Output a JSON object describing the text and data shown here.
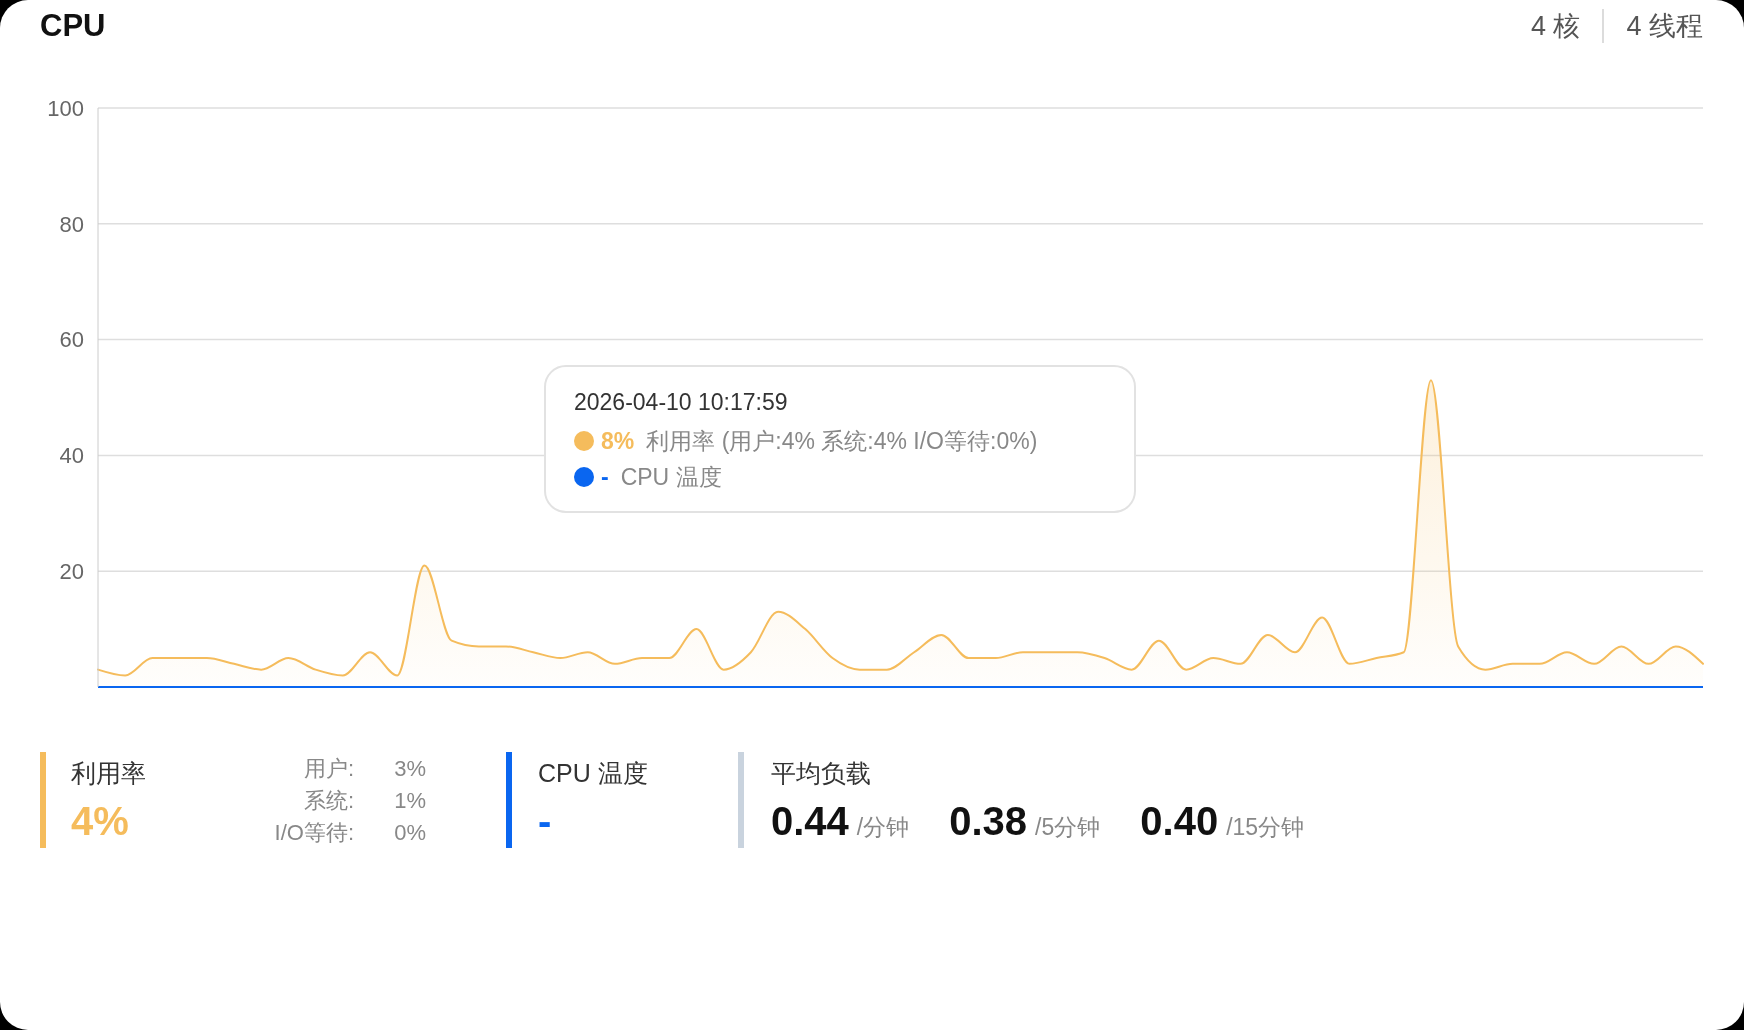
{
  "chart_data": [
    {
      "type": "area",
      "title": "CPU",
      "categories": [
        null,
        null,
        null,
        null,
        null,
        null,
        null,
        null,
        null,
        null,
        null,
        null,
        null,
        null,
        null,
        null,
        null,
        null,
        null,
        null,
        null,
        null,
        null,
        null,
        null,
        null,
        null,
        null,
        null,
        null,
        null,
        null,
        null,
        null,
        null,
        null,
        null,
        null,
        null,
        null,
        null,
        null,
        null,
        null,
        null,
        null,
        null,
        null,
        null,
        null,
        null,
        null,
        null,
        null,
        null,
        null,
        null,
        null,
        null,
        null
      ],
      "series": [
        {
          "name": "利用率 (用户:4% 系统:4% I/O等待:0%)",
          "color": "#f5bc5c",
          "values": [
            3,
            2,
            5,
            5,
            5,
            4,
            3,
            5,
            3,
            2,
            6,
            2,
            21,
            8,
            7,
            7,
            6,
            5,
            6,
            4,
            5,
            5,
            10,
            3,
            6,
            13,
            10,
            5,
            3,
            3,
            6,
            9,
            5,
            5,
            6,
            6,
            6,
            5,
            3,
            8,
            3,
            5,
            4,
            9,
            6,
            12,
            4,
            5,
            6,
            53,
            7,
            3,
            4,
            4,
            6,
            4,
            7,
            4,
            7,
            4
          ]
        },
        {
          "name": "CPU 温度",
          "type": "line",
          "color": "#0a66f0",
          "values": [
            0,
            0,
            0,
            0,
            0,
            0,
            0,
            0,
            0,
            0,
            0,
            0,
            0,
            0,
            0,
            0,
            0,
            0,
            0,
            0,
            0,
            0,
            0,
            0,
            0,
            0,
            0,
            0,
            0,
            0,
            0,
            0,
            0,
            0,
            0,
            0,
            0,
            0,
            0,
            0,
            0,
            0,
            0,
            0,
            0,
            0,
            0,
            0,
            0,
            0,
            0,
            0,
            0,
            0,
            0,
            0,
            0,
            0,
            0,
            0
          ]
        }
      ],
      "ylim": [
        0,
        100
      ],
      "yticks": [
        20,
        40,
        60,
        80,
        100
      ],
      "grid": "y",
      "tick_labels": "y",
      "legend": "bottom left",
      "legend_title": "2026-04-10 10:17:59",
      "annotations": [
        "4 核",
        "4 线程",
        "8%",
        "-"
      ]
    },
    {
      "type": "other",
      "colors": [
        "#f5bc5c",
        "#0a66f0",
        "#c9d3de"
      ],
      "annotations": [
        "利用率",
        "4%",
        "用户:",
        "3%",
        "系统:",
        "1%",
        "I/O等待:",
        "0%",
        "CPU 温度",
        "-",
        "平均负载",
        "0.44",
        "/分钟",
        "0.38",
        "/5分钟",
        "0.40",
        "/15分钟"
      ]
    }
  ]
}
